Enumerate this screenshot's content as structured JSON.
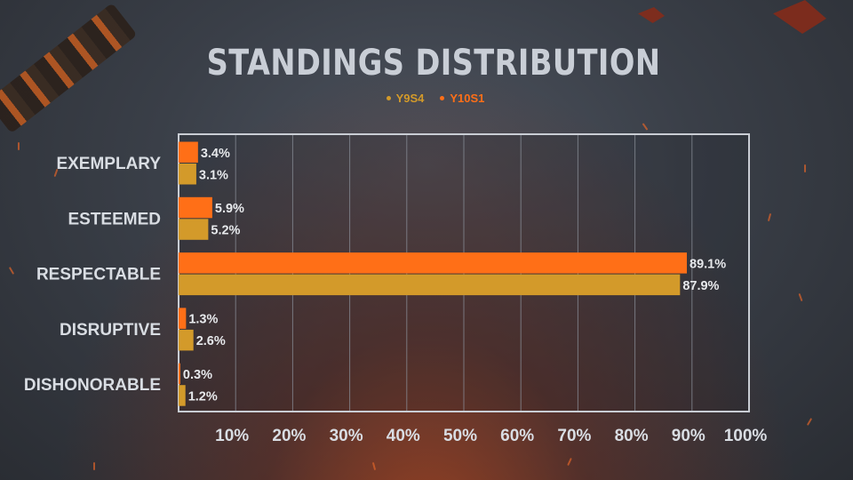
{
  "colors": {
    "y9s4": "#d39a2a",
    "y10s1": "#ff6f17",
    "plot_border": "#c9cdd4",
    "grid": "#8a8f99"
  },
  "chart_data": {
    "type": "bar",
    "orientation": "horizontal",
    "title": "STANDINGS DISTRIBUTION",
    "categories": [
      "EXEMPLARY",
      "ESTEEMED",
      "RESPECTABLE",
      "DISRUPTIVE",
      "DISHONORABLE"
    ],
    "series": [
      {
        "name": "Y10S1",
        "color": "#ff6f17",
        "values": [
          3.4,
          5.9,
          89.1,
          1.3,
          0.3
        ],
        "labels": [
          "3.4%",
          "5.9%",
          "89.1%",
          "1.3%",
          "0.3%"
        ]
      },
      {
        "name": "Y9S4",
        "color": "#d39a2a",
        "values": [
          3.1,
          5.2,
          87.9,
          2.6,
          1.2
        ],
        "labels": [
          "3.1%",
          "5.2%",
          "87.9%",
          "2.6%",
          "1.2%"
        ]
      }
    ],
    "legend": [
      "Y9S4",
      "Y10S1"
    ],
    "xticks": [
      "10%",
      "20%",
      "30%",
      "40%",
      "50%",
      "60%",
      "70%",
      "80%",
      "90%",
      "100%"
    ],
    "xlim": [
      0,
      100
    ],
    "grid": true,
    "legend_position": "top-center"
  }
}
